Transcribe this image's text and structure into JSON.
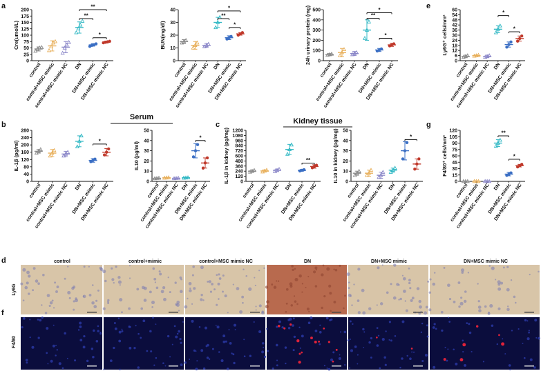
{
  "panel_letters": {
    "a": "a",
    "b": "b",
    "c": "c",
    "d": "d",
    "e": "e",
    "f": "f",
    "g": "g"
  },
  "group_labels": {
    "serum": "Serum",
    "kidney": "Kidney tissue"
  },
  "histology": {
    "columns": [
      "control",
      "control+mimic",
      "control+MSC mimic NC",
      "DN",
      "DN+MSC mimic",
      "DN+MSC mimic NC"
    ],
    "row_labels": [
      "Ly6G",
      "F4/80"
    ],
    "row_colors": {
      "ly6g_bg": "#d8c5a8",
      "ly6g_dn": "#b86a4e",
      "f480_bg": "#0b0d3d",
      "f480_dot": "#e0223a"
    }
  },
  "colors": {
    "control": "#8a8a8a",
    "control_mimic": "#e8b05c",
    "control_mimic_nc": "#8a86c8",
    "dn": "#31b8c4",
    "dn_mimic": "#3b6fc4",
    "dn_mimic_nc": "#c0392b",
    "sig_line": "#111111"
  },
  "chart_data": [
    {
      "id": "cre",
      "type": "scatter",
      "panel": "a",
      "ylabel": "Cre(umol/L)",
      "ylim": [
        0,
        200
      ],
      "yticks": [
        0,
        25,
        50,
        75,
        100,
        125,
        150,
        175,
        200
      ],
      "categories": [
        "control",
        "control+MSC mimic",
        "control+MSC mimic NC",
        "DN",
        "DN+MSC mimic",
        "DN+MSC mimic NC"
      ],
      "means": [
        46,
        58,
        53,
        130,
        62,
        73
      ],
      "sd": [
        8,
        20,
        22,
        22,
        5,
        4
      ],
      "points": [
        [
          38,
          45,
          50,
          52
        ],
        [
          40,
          55,
          70,
          75
        ],
        [
          30,
          50,
          62,
          72
        ],
        [
          110,
          125,
          140,
          155
        ],
        [
          56,
          60,
          62,
          66
        ],
        [
          70,
          72,
          74,
          76
        ]
      ],
      "sig": [
        {
          "from": 3,
          "to": 5,
          "label": "**",
          "level": 200
        },
        {
          "from": 3,
          "to": 4,
          "label": "**",
          "level": 165
        },
        {
          "from": 4,
          "to": 5,
          "label": "*",
          "level": 90
        }
      ]
    },
    {
      "id": "bun",
      "type": "scatter",
      "panel": "a",
      "ylabel": "BUN(mg/dl)",
      "ylim": [
        0,
        40
      ],
      "yticks": [
        0,
        10,
        20,
        30,
        40
      ],
      "categories": [
        "control",
        "control+MSC mimic",
        "control+MSC mimic NC",
        "DN",
        "DN+MSC mimic",
        "DN+MSC mimic NC"
      ],
      "means": [
        15,
        12,
        12,
        30,
        18,
        21
      ],
      "sd": [
        1.5,
        3,
        1.5,
        4,
        1.5,
        1
      ],
      "points": [
        [
          14,
          15,
          16
        ],
        [
          10,
          12,
          14
        ],
        [
          11,
          12,
          13
        ],
        [
          26,
          30,
          34
        ],
        [
          17,
          18,
          19
        ],
        [
          20,
          21,
          22
        ]
      ],
      "sig": [
        {
          "from": 3,
          "to": 5,
          "label": "*",
          "level": 39
        },
        {
          "from": 3,
          "to": 4,
          "label": "**",
          "level": 33
        },
        {
          "from": 4,
          "to": 5,
          "label": "*",
          "level": 26
        }
      ]
    },
    {
      "id": "uprot",
      "type": "scatter",
      "panel": "a",
      "ylabel": "24h urinary protein (mg)",
      "ylim": [
        0,
        500
      ],
      "yticks": [
        0,
        100,
        200,
        300,
        400,
        500
      ],
      "categories": [
        "control",
        "control+MSC mimic",
        "control+MSC mimic NC",
        "DN",
        "DN+MSC mimic",
        "DN+MSC mimic NC"
      ],
      "means": [
        60,
        80,
        70,
        300,
        105,
        155
      ],
      "sd": [
        10,
        40,
        20,
        100,
        15,
        15
      ],
      "points": [
        [
          55,
          60,
          65
        ],
        [
          50,
          80,
          110
        ],
        [
          60,
          70,
          80
        ],
        [
          220,
          300,
          380
        ],
        [
          95,
          105,
          115
        ],
        [
          145,
          155,
          165
        ]
      ],
      "sig": [
        {
          "from": 3,
          "to": 5,
          "label": "*",
          "level": 470
        },
        {
          "from": 3,
          "to": 4,
          "label": "**",
          "level": 415
        },
        {
          "from": 4,
          "to": 5,
          "label": "*",
          "level": 220
        }
      ]
    },
    {
      "id": "ly6g",
      "type": "scatter",
      "panel": "e",
      "ylabel": "Ly6G⁺ cells/mm²",
      "ylim": [
        0,
        60
      ],
      "yticks": [
        0,
        6,
        12,
        18,
        24,
        30,
        36,
        42,
        48,
        54,
        60
      ],
      "categories": [
        "control",
        "control+MSC mimic",
        "control+MSC mimic NC",
        "DN",
        "DN+MSC mimic",
        "DN+MSC mimic NC"
      ],
      "means": [
        5,
        6,
        5,
        37,
        19,
        26
      ],
      "sd": [
        1.5,
        0.5,
        1.5,
        4,
        3,
        3
      ],
      "points": [
        [
          4,
          5,
          6
        ],
        [
          5.5,
          6,
          6.5
        ],
        [
          4,
          5,
          6
        ],
        [
          33,
          37,
          41
        ],
        [
          16,
          19,
          22
        ],
        [
          23,
          26,
          29
        ]
      ],
      "sig": [
        {
          "from": 3,
          "to": 4,
          "label": "*",
          "level": 53
        },
        {
          "from": 4,
          "to": 5,
          "label": "*",
          "level": 34
        }
      ]
    },
    {
      "id": "il1b",
      "type": "scatter",
      "panel": "b",
      "ylabel": "IL-1β (pg/ml)",
      "ylim": [
        0,
        280
      ],
      "yticks": [
        0,
        40,
        80,
        120,
        160,
        200,
        240,
        280
      ],
      "categories": [
        "control",
        "control+MSC mimic",
        "control+MSC mimic NC",
        "DN",
        "DN+MSC mimic",
        "DN+MSC mimic NC"
      ],
      "means": [
        165,
        155,
        150,
        220,
        115,
        160
      ],
      "sd": [
        10,
        20,
        15,
        30,
        10,
        20
      ],
      "points": [
        [
          155,
          165,
          175
        ],
        [
          140,
          155,
          170
        ],
        [
          140,
          150,
          160
        ],
        [
          190,
          220,
          250
        ],
        [
          108,
          115,
          122
        ],
        [
          145,
          160,
          178
        ]
      ],
      "sig": [
        {
          "from": 4,
          "to": 5,
          "label": "*",
          "level": 205
        }
      ]
    },
    {
      "id": "il10s",
      "type": "scatter",
      "panel": "b",
      "ylabel": "IL10 (pg/ml)",
      "ylim": [
        0,
        50
      ],
      "yticks": [
        0,
        10,
        20,
        30,
        40,
        50
      ],
      "categories": [
        "control",
        "control+MSC mimic",
        "control+MSC mimic NC",
        "DN",
        "DN+MSC mimic",
        "DN+MSC mimic NC"
      ],
      "means": [
        3,
        3.5,
        3,
        3.5,
        30,
        18
      ],
      "sd": [
        0.3,
        0.3,
        0.3,
        0.3,
        7,
        5
      ],
      "points": [
        [
          2.8,
          3,
          3.2
        ],
        [
          3.3,
          3.5,
          3.7
        ],
        [
          2.8,
          3,
          3.2
        ],
        [
          3.3,
          3.5,
          3.7
        ],
        [
          24,
          30,
          36
        ],
        [
          13,
          18,
          23
        ]
      ],
      "sig": [
        {
          "from": 4,
          "to": 5,
          "label": "*",
          "level": 40
        }
      ]
    },
    {
      "id": "il1bk",
      "type": "scatter",
      "panel": "c",
      "ylabel": "IL-1β in kidney (pg/mg)",
      "ylim": [
        0,
        1200
      ],
      "yticks": [
        0,
        120,
        240,
        360,
        480,
        600,
        720,
        840,
        960,
        1080,
        1200
      ],
      "categories": [
        "control",
        "control+MSC mimic",
        "control+MSC mimic NC",
        "DN",
        "DN+MSC mimic",
        "DN+MSC mimic NC"
      ],
      "means": [
        240,
        245,
        260,
        750,
        260,
        350
      ],
      "sd": [
        30,
        25,
        30,
        120,
        20,
        40
      ],
      "points": [
        [
          220,
          240,
          260
        ],
        [
          225,
          245,
          265
        ],
        [
          235,
          260,
          285
        ],
        [
          640,
          750,
          860
        ],
        [
          245,
          260,
          275
        ],
        [
          320,
          350,
          380
        ]
      ],
      "sig": [
        {
          "from": 4,
          "to": 5,
          "label": "**",
          "level": 430
        }
      ]
    },
    {
      "id": "il10k",
      "type": "scatter",
      "panel": "c",
      "ylabel": "IL10 in kidney (pg/mg)",
      "ylim": [
        0,
        50
      ],
      "yticks": [
        0,
        10,
        20,
        30,
        40,
        50
      ],
      "categories": [
        "control",
        "control+MSC mimic",
        "control+MSC mimic NC",
        "DN",
        "DN+MSC mimic",
        "DN+MSC mimic NC"
      ],
      "means": [
        8,
        8,
        6,
        11,
        30,
        17
      ],
      "sd": [
        2,
        3,
        3,
        2,
        9,
        5
      ],
      "points": [
        [
          6,
          8,
          10
        ],
        [
          6,
          8,
          11
        ],
        [
          4,
          6,
          9
        ],
        [
          9,
          11,
          13
        ],
        [
          22,
          30,
          38
        ],
        [
          12,
          17,
          22
        ]
      ],
      "sig": [
        {
          "from": 4,
          "to": 5,
          "label": "*",
          "level": 41
        }
      ]
    },
    {
      "id": "f480",
      "type": "scatter",
      "panel": "g",
      "ylabel": "F4/80⁺ cells/mm²",
      "ylim": [
        0,
        120
      ],
      "yticks": [
        0,
        15,
        30,
        45,
        60,
        75,
        90,
        105,
        120
      ],
      "categories": [
        "control",
        "control+MSC mimic",
        "control+MSC mimic NC",
        "DN",
        "DN+MSC mimic",
        "DN+MSC mimic NC"
      ],
      "means": [
        0,
        0,
        0,
        90,
        17,
        37
      ],
      "sd": [
        0,
        0,
        0,
        8,
        4,
        3
      ],
      "points": [
        [
          0,
          0,
          0
        ],
        [
          0,
          0,
          0
        ],
        [
          0,
          0,
          0
        ],
        [
          83,
          90,
          97
        ],
        [
          14,
          17,
          20
        ],
        [
          34,
          37,
          40
        ]
      ],
      "sig": [
        {
          "from": 3,
          "to": 4,
          "label": "**",
          "level": 107
        },
        {
          "from": 4,
          "to": 5,
          "label": "*",
          "level": 52
        }
      ]
    }
  ]
}
